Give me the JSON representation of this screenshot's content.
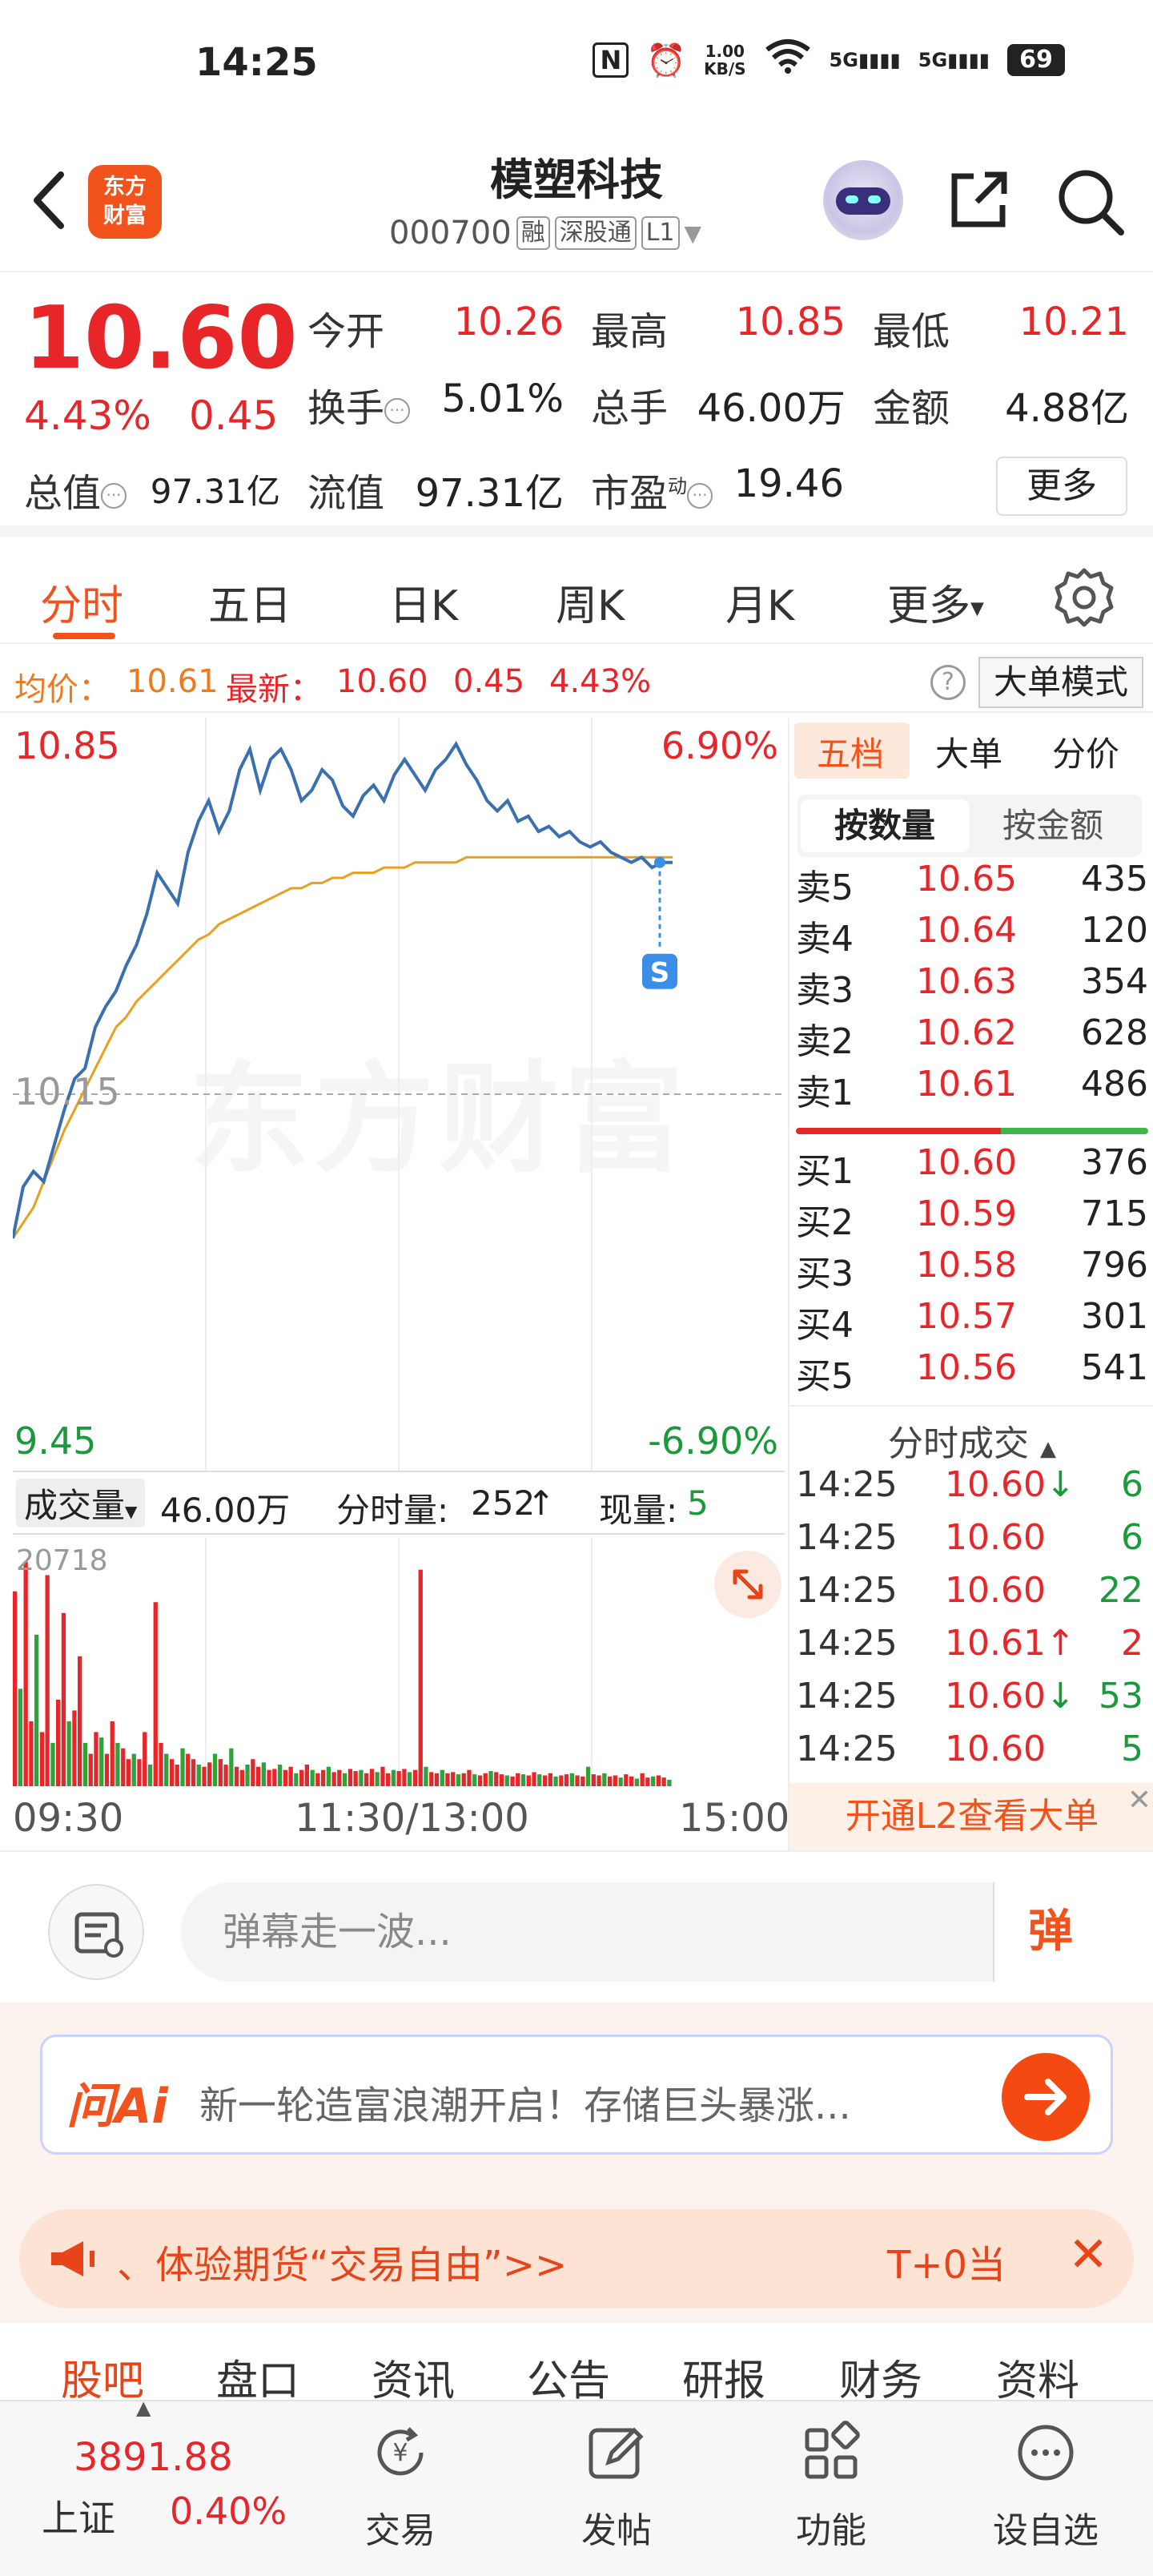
{
  "status": {
    "time": "14:25",
    "nfc": "N",
    "netspeed_top": "1.00",
    "netspeed_bottom": "KB/S",
    "sig1": "5G",
    "sig2": "5G",
    "battery": "69"
  },
  "header": {
    "logo_line1": "东方",
    "logo_line2": "财富",
    "name": "模塑科技",
    "code": "000700",
    "tags": [
      "融",
      "深股通",
      "L1"
    ]
  },
  "quote": {
    "price": "10.60",
    "pct": "4.43%",
    "change": "0.45",
    "open_label": "今开",
    "open": "10.26",
    "high_label": "最高",
    "high": "10.85",
    "low_label": "最低",
    "low": "10.21",
    "turnover_label": "换手",
    "turnover": "5.01%",
    "vol_label": "总手",
    "vol": "46.00万",
    "amount_label": "金额",
    "amount": "4.88亿",
    "mcap_label": "总值",
    "mcap": "97.31亿",
    "float_label": "流值",
    "float": "97.31亿",
    "pe_label": "市盈",
    "pe_sup": "动",
    "pe": "19.46",
    "more": "更多"
  },
  "tabs": [
    "分时",
    "五日",
    "日K",
    "周K",
    "月K",
    "更多"
  ],
  "avgbar": {
    "avg_label": "均价：",
    "avg": "10.61",
    "last_label": "最新：",
    "last": "10.60",
    "chg": "0.45",
    "pct": "4.43%",
    "help": "?",
    "bigorder": "大单模式"
  },
  "chart": {
    "ymax": "10.85",
    "ymid": "10.15",
    "ymin": "9.45",
    "pmax": "6.90%",
    "pmin": "-6.90%",
    "watermark": "东方财富",
    "s_badge": "S"
  },
  "chart_data": {
    "type": "line",
    "title": "",
    "ylim": [
      9.45,
      10.85
    ],
    "reference": 10.15,
    "x_ticks": [
      "09:30",
      "11:30/13:00",
      "15:00"
    ],
    "series": [
      {
        "name": "",
        "color": "#3a6fb0",
        "values": [
          9.87,
          9.97,
          10.0,
          9.98,
          10.05,
          10.12,
          10.18,
          10.2,
          10.28,
          10.32,
          10.35,
          10.4,
          10.44,
          10.5,
          10.58,
          10.55,
          10.52,
          10.62,
          10.68,
          10.72,
          10.66,
          10.7,
          10.78,
          10.82,
          10.74,
          10.8,
          10.82,
          10.78,
          10.72,
          10.74,
          10.78,
          10.76,
          10.71,
          10.69,
          10.73,
          10.75,
          10.72,
          10.77,
          10.8,
          10.77,
          10.74,
          10.78,
          10.8,
          10.83,
          10.79,
          10.76,
          10.72,
          10.7,
          10.72,
          10.68,
          10.69,
          10.66,
          10.67,
          10.65,
          10.66,
          10.64,
          10.63,
          10.64,
          10.62,
          10.61,
          10.6,
          10.61,
          10.59,
          10.6,
          10.6
        ]
      },
      {
        "name": "",
        "color": "#e8a020",
        "values": [
          9.87,
          9.9,
          9.93,
          9.98,
          10.03,
          10.08,
          10.12,
          10.16,
          10.2,
          10.24,
          10.28,
          10.3,
          10.33,
          10.35,
          10.37,
          10.39,
          10.41,
          10.43,
          10.45,
          10.46,
          10.48,
          10.49,
          10.5,
          10.51,
          10.52,
          10.53,
          10.54,
          10.55,
          10.55,
          10.56,
          10.56,
          10.57,
          10.57,
          10.58,
          10.58,
          10.58,
          10.59,
          10.59,
          10.59,
          10.6,
          10.6,
          10.6,
          10.6,
          10.6,
          10.61,
          10.61,
          10.61,
          10.61,
          10.61,
          10.61,
          10.61,
          10.61,
          10.61,
          10.61,
          10.61,
          10.61,
          10.61,
          10.61,
          10.61,
          10.61,
          10.61,
          10.61,
          10.61,
          10.61,
          10.61
        ]
      }
    ],
    "volume": {
      "max": 20718,
      "values": [
        18000,
        9000,
        20718,
        6000,
        14000,
        5000,
        19500,
        4000,
        8000,
        16000,
        6000,
        7000,
        12000,
        4000,
        3000,
        5000,
        4500,
        3000,
        6000,
        4000,
        3500,
        2500,
        3000,
        2500,
        5000,
        2000,
        17000,
        4000,
        3000,
        2500,
        2000,
        3500,
        3000,
        2500,
        2000,
        1800,
        2200,
        3000,
        2500,
        2000,
        3500,
        1800,
        1500,
        2000,
        2500,
        1800,
        2200,
        1500,
        1600,
        2000,
        1500,
        1800,
        1200,
        1500,
        2000,
        1500,
        1200,
        1500,
        1800,
        1300,
        1500,
        1200,
        1600,
        1400,
        1500,
        1200,
        1600,
        1300,
        1800,
        1200,
        1500,
        1400,
        1600,
        1300,
        1500,
        20000,
        1800,
        1300,
        1200,
        1500,
        1200,
        1300,
        1100,
        1200,
        1500,
        1100,
        1000,
        1200,
        1400,
        1300,
        1100,
        1000,
        900,
        1200,
        1100,
        1000,
        1300,
        1100,
        1000,
        1200,
        900,
        1000,
        1100,
        1200,
        1000,
        900,
        1800,
        1100,
        1000,
        1200,
        900,
        1000,
        800,
        1100,
        900,
        700,
        1200,
        800,
        900,
        1000,
        800,
        600
      ]
    }
  },
  "volhdr": {
    "sel": "成交量",
    "total": "46.00万",
    "fs_label": "分时量:",
    "fs_val": "252",
    "now_label": "现量:",
    "now": "5",
    "vmax": "20718"
  },
  "book": {
    "tabs": [
      "五档",
      "大单",
      "分价"
    ],
    "seg": [
      "按数量",
      "按金额"
    ],
    "asks": [
      [
        "卖5",
        "10.65",
        "435"
      ],
      [
        "卖4",
        "10.64",
        "120"
      ],
      [
        "卖3",
        "10.63",
        "354"
      ],
      [
        "卖2",
        "10.62",
        "628"
      ],
      [
        "卖1",
        "10.61",
        "486"
      ]
    ],
    "bids": [
      [
        "买1",
        "10.60",
        "376"
      ],
      [
        "买2",
        "10.59",
        "715"
      ],
      [
        "买3",
        "10.58",
        "796"
      ],
      [
        "买4",
        "10.57",
        "301"
      ],
      [
        "买5",
        "10.56",
        "541"
      ]
    ],
    "trades_header": "分时成交",
    "trades": [
      [
        "14:25",
        "10.60",
        "↓",
        "6",
        "green"
      ],
      [
        "14:25",
        "10.60",
        "",
        "6",
        "green"
      ],
      [
        "14:25",
        "10.60",
        "",
        "22",
        "green"
      ],
      [
        "14:25",
        "10.61",
        "↑",
        "2",
        "red"
      ],
      [
        "14:25",
        "10.60",
        "↓",
        "53",
        "green"
      ],
      [
        "14:25",
        "10.60",
        "",
        "5",
        "green"
      ]
    ],
    "l2": "开通L2查看大单",
    "l2_close": "✕"
  },
  "danmu": {
    "placeholder": "弹幕走一波...",
    "send": "弹"
  },
  "ai": {
    "logo": "问Ai",
    "text": "新一轮造富浪潮开启！存储巨头暴涨..."
  },
  "promo": {
    "text": "、体验期货“交易自由”>>",
    "text2": "T+0当",
    "close": "✕"
  },
  "subtabs": [
    "股吧",
    "盘口",
    "资讯",
    "公告",
    "研报",
    "财务",
    "资料"
  ],
  "bottom": {
    "idx_val": "3891.88",
    "idx_name": "上证",
    "idx_pct": "0.40%",
    "nav": [
      "交易",
      "发帖",
      "功能",
      "设自选"
    ]
  }
}
